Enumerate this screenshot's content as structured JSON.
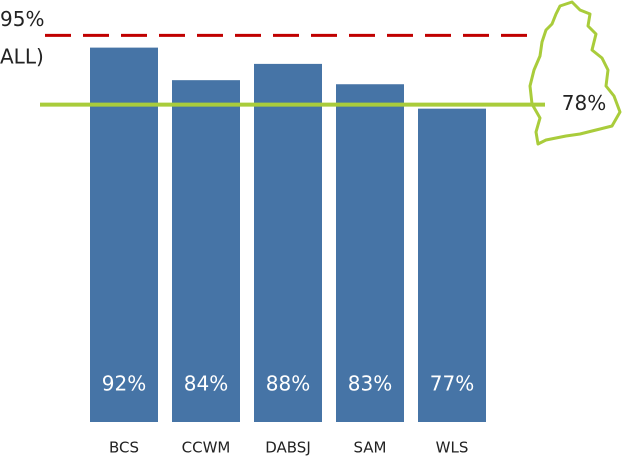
{
  "chart_data": {
    "type": "bar",
    "categories": [
      "BCS",
      "CCWM",
      "DABSJ",
      "SAM",
      "WLS"
    ],
    "values": [
      92,
      84,
      88,
      83,
      77
    ],
    "value_labels": [
      "92%",
      "84%",
      "88%",
      "83%",
      "77%"
    ],
    "color": "#4674a6",
    "ylim": [
      0,
      103.7
    ],
    "reference_lines": [
      {
        "value": 95,
        "label": "95%",
        "color": "#c00000",
        "style": "dashed"
      },
      {
        "value": 78,
        "label": "78%",
        "color": "#a9cc3b",
        "style": "solid"
      }
    ],
    "annotations": [
      "ALL)"
    ]
  }
}
